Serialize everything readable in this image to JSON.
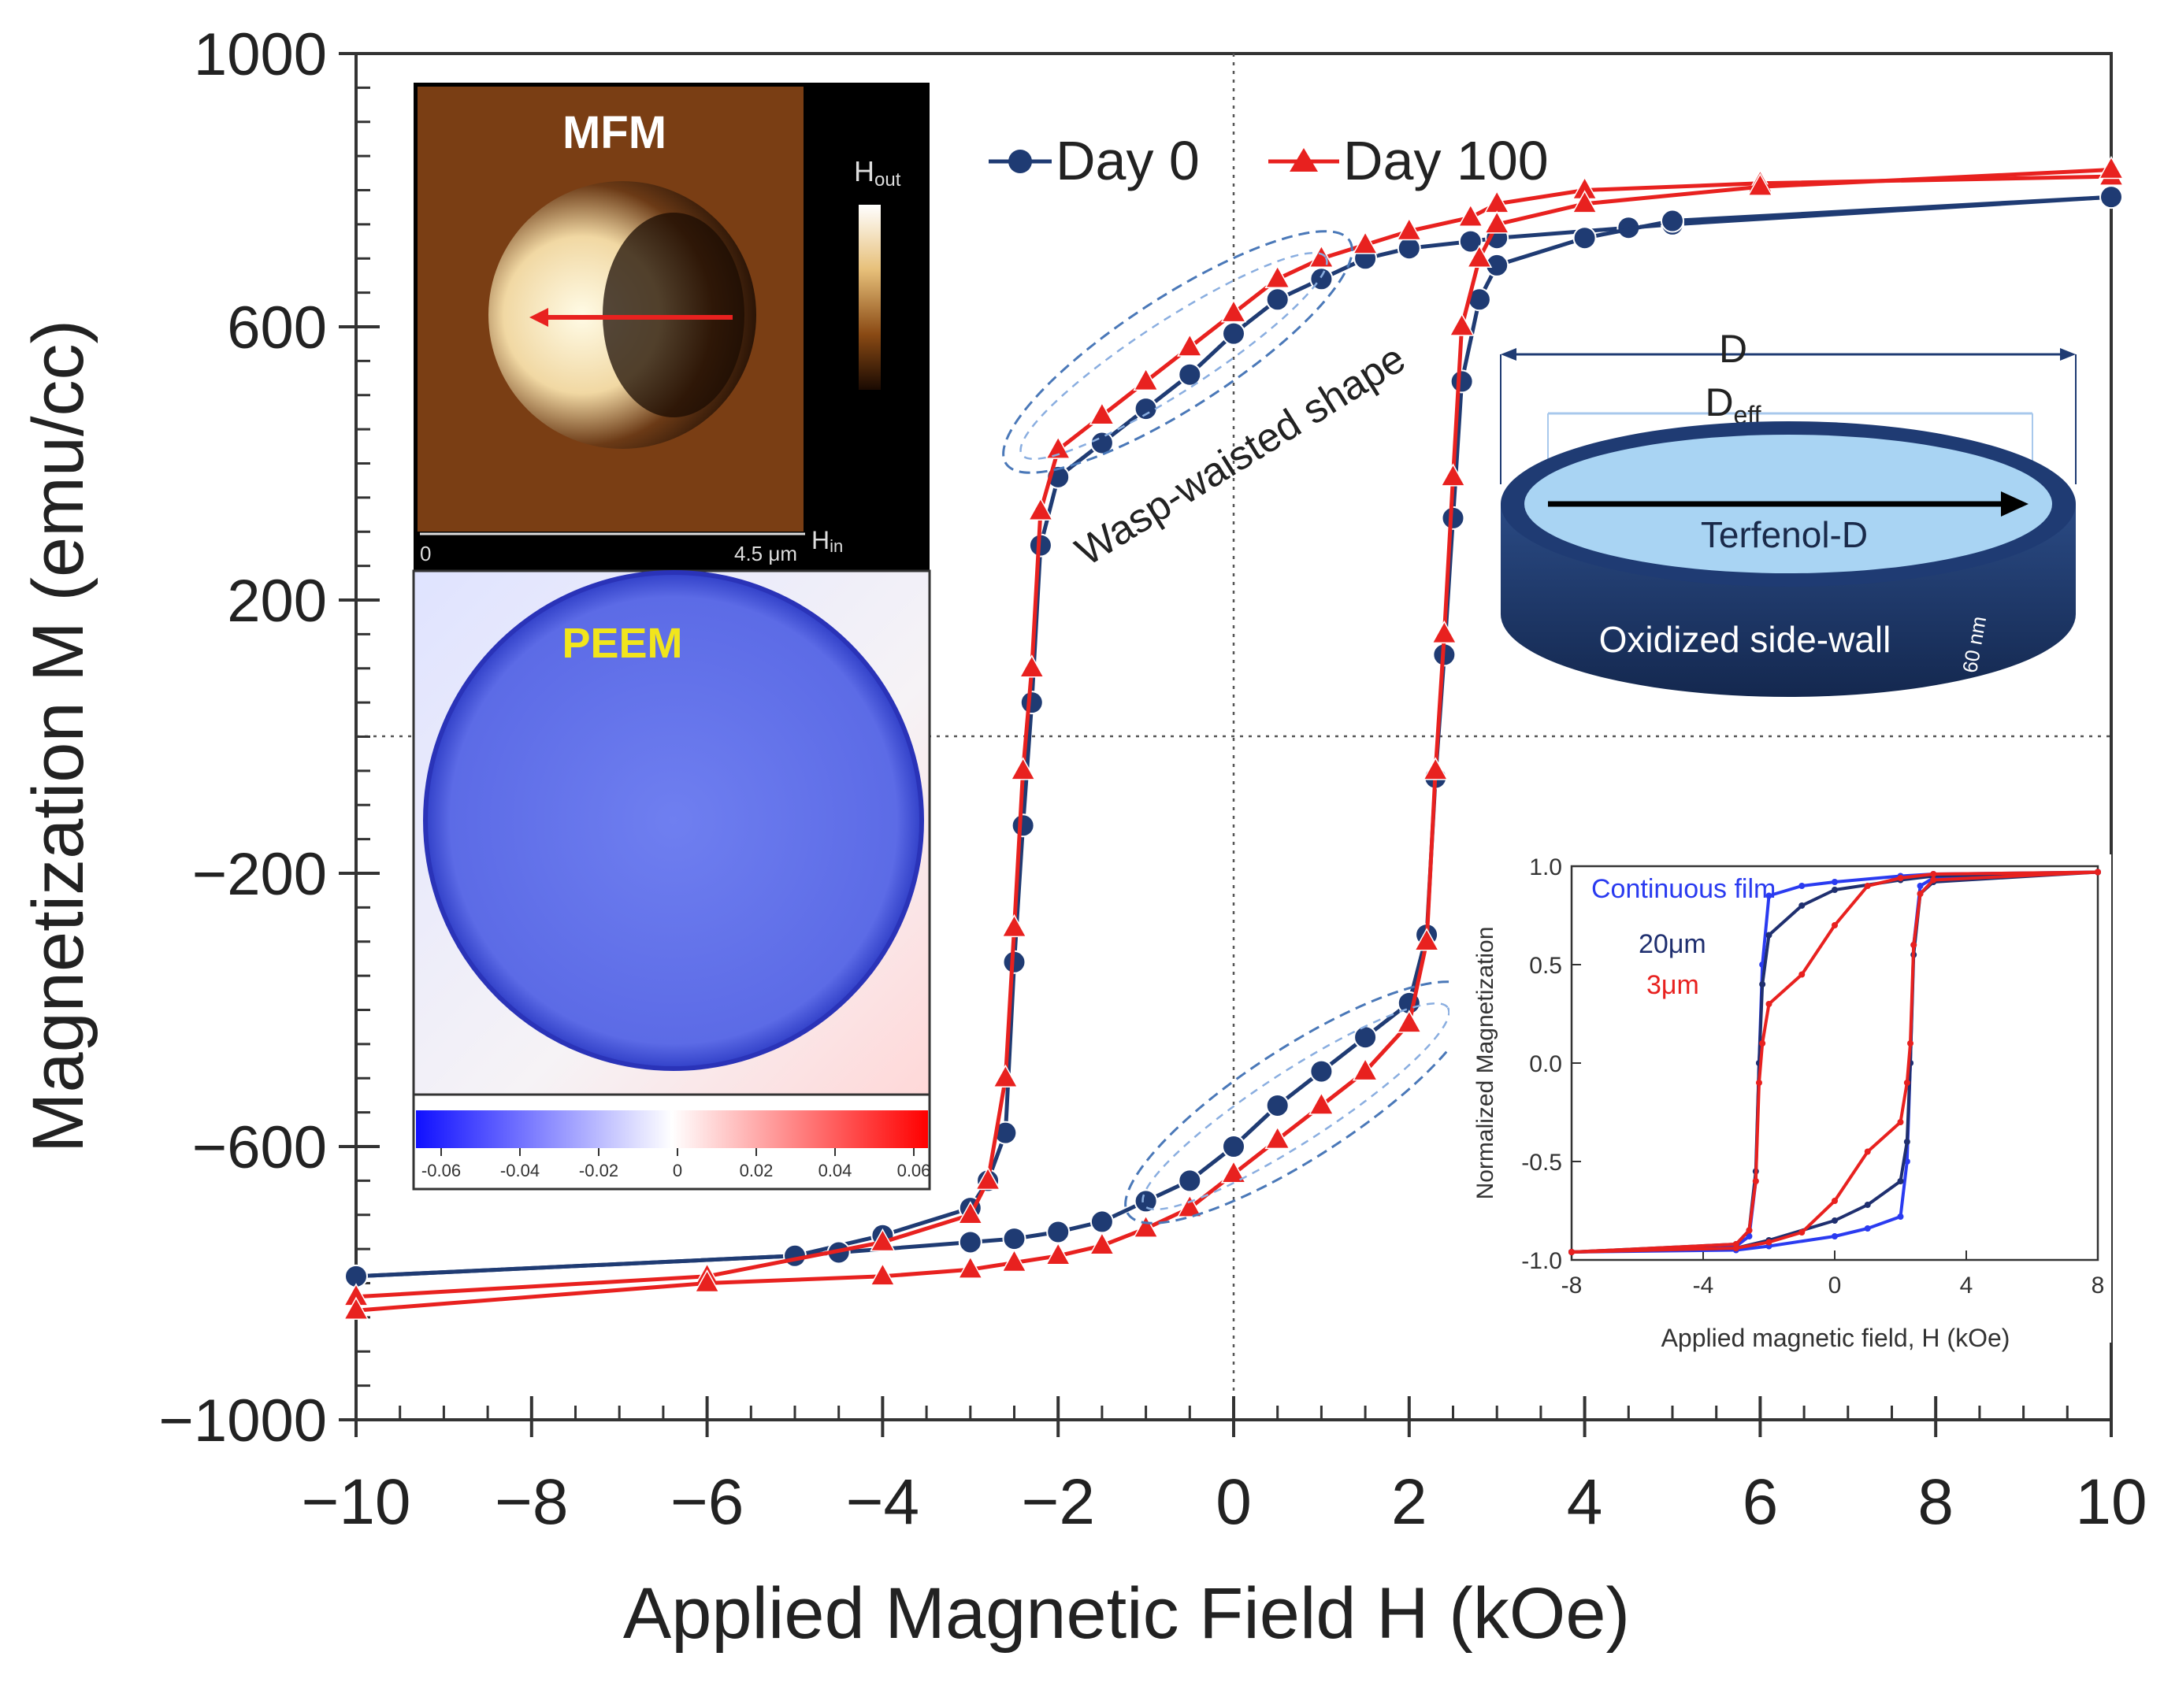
{
  "chart_data": {
    "type": "line",
    "title": "",
    "xlabel": "Applied Magnetic Field  H (kOe)",
    "ylabel": "Magnetization  M (emu/cc)",
    "xlim": [
      -10,
      10
    ],
    "ylim": [
      -1000,
      1000
    ],
    "xticks": [
      -10,
      -8,
      -6,
      -4,
      -2,
      0,
      2,
      4,
      6,
      8,
      10
    ],
    "xtick_labels": [
      "−10",
      "−8",
      "−6",
      "−4",
      "−2",
      "0",
      "2",
      "4",
      "6",
      "8",
      "10"
    ],
    "yticks": [
      -1000,
      -600,
      -200,
      200,
      600,
      1000
    ],
    "ytick_labels": [
      "−1000",
      "−600",
      "−200",
      "200",
      "600",
      "1000"
    ],
    "legend_position": "top-center",
    "series": [
      {
        "name": "Day 0",
        "color": "#1f3b73",
        "marker": "circle",
        "descending": {
          "x": [
            10,
            5,
            4.5,
            3,
            2.7,
            2,
            1.5,
            1,
            0.5,
            0,
            -0.5,
            -1,
            -1.5,
            -2,
            -2.2,
            -2.3,
            -2.4,
            -2.5,
            -2.6,
            -2.8,
            -3,
            -4,
            -5,
            -10
          ],
          "y": [
            790,
            750,
            745,
            730,
            725,
            715,
            700,
            670,
            640,
            590,
            530,
            480,
            430,
            380,
            280,
            50,
            -130,
            -330,
            -580,
            -650,
            -690,
            -730,
            -760,
            -790
          ]
        },
        "ascending": {
          "x": [
            -10,
            -5,
            -4.5,
            -3,
            -2.5,
            -2,
            -1.5,
            -1,
            -0.5,
            0,
            0.5,
            1,
            1.5,
            2,
            2.2,
            2.3,
            2.4,
            2.5,
            2.6,
            2.8,
            3,
            4,
            5,
            10
          ],
          "y": [
            -790,
            -760,
            -755,
            -740,
            -735,
            -725,
            -710,
            -680,
            -650,
            -600,
            -540,
            -490,
            -440,
            -390,
            -290,
            -60,
            120,
            320,
            520,
            640,
            690,
            730,
            755,
            790
          ]
        }
      },
      {
        "name": "Day 100",
        "color": "#e8211f",
        "marker": "triangle",
        "descending": {
          "x": [
            10,
            6,
            4,
            3,
            2.7,
            2,
            1.5,
            1,
            0.5,
            0,
            -0.5,
            -1,
            -1.5,
            -2,
            -2.2,
            -2.3,
            -2.4,
            -2.5,
            -2.6,
            -2.8,
            -3,
            -4,
            -6,
            -10
          ],
          "y": [
            820,
            810,
            800,
            780,
            760,
            740,
            720,
            700,
            670,
            620,
            570,
            520,
            470,
            420,
            330,
            100,
            -50,
            -280,
            -500,
            -650,
            -700,
            -740,
            -790,
            -820
          ]
        },
        "ascending": {
          "x": [
            -10,
            -6,
            -4,
            -3,
            -2.5,
            -2,
            -1.5,
            -1,
            -0.5,
            0,
            0.5,
            1,
            1.5,
            2,
            2.2,
            2.3,
            2.4,
            2.5,
            2.6,
            2.8,
            3,
            4,
            6,
            10
          ],
          "y": [
            -840,
            -800,
            -790,
            -780,
            -770,
            -760,
            -745,
            -720,
            -690,
            -640,
            -590,
            -540,
            -490,
            -420,
            -300,
            -50,
            150,
            380,
            600,
            700,
            750,
            780,
            805,
            830
          ]
        }
      }
    ],
    "annotations": [
      "Wasp-waisted shape"
    ],
    "inset_mfm": {
      "title": "MFM",
      "colorbar_top": "H",
      "colorbar_top_sub": "out",
      "scale_start": "0",
      "scale_end": "4.5 μm",
      "axis_label": "H",
      "axis_label_sub": "in"
    },
    "inset_peem": {
      "title": "PEEM",
      "colorbar_ticks": [
        "-0.06",
        "-0.04",
        "-0.02",
        "0",
        "0.02",
        "0.04",
        "0.06"
      ]
    },
    "inset_disk": {
      "label_d": "D",
      "label_deff": "D",
      "label_deff_sub": "eff",
      "label_material": "Terfenol-D",
      "label_wall": "Oxidized side-wall",
      "label_thickness": "60 nm"
    },
    "inset_normalized": {
      "type": "line",
      "xlabel": "Applied magnetic field, H (kOe)",
      "ylabel": "Normalized Magnetization",
      "xlim": [
        -8,
        8
      ],
      "ylim": [
        -1,
        1
      ],
      "xticks": [
        -8,
        -4,
        0,
        4,
        8
      ],
      "xtick_labels": [
        "-8",
        "-4",
        "0",
        "4",
        "8"
      ],
      "yticks": [
        1,
        0.5,
        0,
        -0.5,
        -1
      ],
      "ytick_labels": [
        "1.0",
        "0.5",
        "0.0",
        "-0.5",
        "-1.0"
      ],
      "series": [
        {
          "name": "Continuous film",
          "color": "#2a3bf0",
          "descending": {
            "x": [
              8,
              3,
              2,
              0,
              -1,
              -2,
              -2.2,
              -2.3,
              -2.4,
              -2.6,
              -3,
              -8
            ],
            "y": [
              0.97,
              0.96,
              0.95,
              0.92,
              0.9,
              0.85,
              0.5,
              0,
              -0.6,
              -0.88,
              -0.93,
              -0.96
            ]
          },
          "ascending": {
            "x": [
              -8,
              -3,
              -2,
              0,
              1,
              2,
              2.2,
              2.3,
              2.4,
              2.6,
              3,
              8
            ],
            "y": [
              -0.96,
              -0.95,
              -0.93,
              -0.88,
              -0.84,
              -0.78,
              -0.5,
              0,
              0.6,
              0.9,
              0.94,
              0.97
            ]
          }
        },
        {
          "name": "20μm",
          "color": "#1f2f6f",
          "descending": {
            "x": [
              8,
              3,
              2,
              0,
              -1,
              -2,
              -2.2,
              -2.3,
              -2.4,
              -2.6,
              -3,
              -8
            ],
            "y": [
              0.97,
              0.95,
              0.93,
              0.88,
              0.8,
              0.65,
              0.4,
              0,
              -0.55,
              -0.85,
              -0.92,
              -0.96
            ]
          },
          "ascending": {
            "x": [
              -8,
              -3,
              -2,
              0,
              1,
              2,
              2.2,
              2.3,
              2.4,
              2.6,
              3,
              8
            ],
            "y": [
              -0.96,
              -0.94,
              -0.9,
              -0.8,
              -0.72,
              -0.6,
              -0.4,
              0,
              0.55,
              0.86,
              0.92,
              0.97
            ]
          }
        },
        {
          "name": "3μm",
          "color": "#e8211f",
          "descending": {
            "x": [
              8,
              3,
              2,
              1,
              0,
              -1,
              -2,
              -2.2,
              -2.3,
              -2.4,
              -2.6,
              -3,
              -8
            ],
            "y": [
              0.97,
              0.96,
              0.94,
              0.9,
              0.7,
              0.45,
              0.3,
              0.1,
              -0.1,
              -0.6,
              -0.85,
              -0.92,
              -0.96
            ]
          },
          "ascending": {
            "x": [
              -8,
              -3,
              -2,
              -1,
              0,
              1,
              2,
              2.2,
              2.3,
              2.4,
              2.6,
              3,
              8
            ],
            "y": [
              -0.96,
              -0.94,
              -0.91,
              -0.86,
              -0.7,
              -0.45,
              -0.3,
              -0.1,
              0.1,
              0.6,
              0.86,
              0.93,
              0.97
            ]
          }
        }
      ]
    }
  }
}
